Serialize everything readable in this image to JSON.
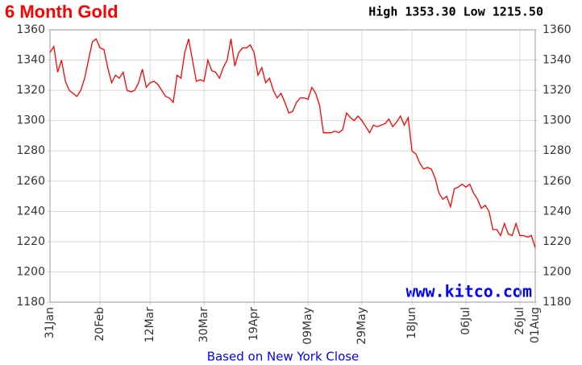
{
  "chart_data": {
    "type": "line",
    "title": "6 Month Gold",
    "subtitle": "High 1353.30 Low 1215.50",
    "watermark": "www.kitco.com",
    "x_label": "Based on New York Close",
    "categories": [
      "31Jan",
      null,
      null,
      null,
      null,
      null,
      null,
      null,
      null,
      null,
      null,
      null,
      null,
      "20Feb",
      null,
      null,
      null,
      null,
      null,
      null,
      null,
      null,
      null,
      null,
      null,
      null,
      "12Mar",
      null,
      null,
      null,
      null,
      null,
      null,
      null,
      null,
      null,
      null,
      null,
      null,
      null,
      "30Mar",
      null,
      null,
      null,
      null,
      null,
      null,
      null,
      null,
      null,
      null,
      null,
      null,
      "19Apr",
      null,
      null,
      null,
      null,
      null,
      null,
      null,
      null,
      null,
      null,
      null,
      null,
      null,
      "09May",
      null,
      null,
      null,
      null,
      null,
      null,
      null,
      null,
      null,
      null,
      null,
      null,
      null,
      "29May",
      null,
      null,
      null,
      null,
      null,
      null,
      null,
      null,
      null,
      null,
      null,
      null,
      "18Jun",
      null,
      null,
      null,
      null,
      null,
      null,
      null,
      null,
      null,
      null,
      null,
      null,
      null,
      "06Jul",
      null,
      null,
      null,
      null,
      null,
      null,
      null,
      null,
      null,
      null,
      null,
      null,
      null,
      "26Jul",
      null,
      null,
      null,
      "01Aug"
    ],
    "series": [
      {
        "name": "Gold",
        "color": "#ff0000",
        "values": [
          1345,
          1349,
          1332,
          1340,
          1326,
          1320,
          1318,
          1316,
          1320,
          1328,
          1340,
          1352,
          1354,
          1348,
          1347,
          1335,
          1325,
          1330,
          1328,
          1332,
          1320,
          1319,
          1320,
          1325,
          1334,
          1322,
          1325,
          1326,
          1324,
          1320,
          1316,
          1315,
          1312,
          1330,
          1328,
          1345,
          1354,
          1340,
          1326,
          1327,
          1326,
          1340,
          1333,
          1332,
          1328,
          1335,
          1340,
          1354,
          1336,
          1345,
          1348,
          1348,
          1350,
          1345,
          1330,
          1335,
          1325,
          1328,
          1320,
          1315,
          1318,
          1312,
          1305,
          1306,
          1312,
          1315,
          1315,
          1314,
          1322,
          1318,
          1310,
          1292,
          1292,
          1292,
          1293,
          1292,
          1294,
          1305,
          1302,
          1300,
          1303,
          1300,
          1296,
          1292,
          1297,
          1296,
          1297,
          1298,
          1301,
          1296,
          1299,
          1303,
          1297,
          1302,
          1280,
          1278,
          1272,
          1268,
          1269,
          1268,
          1262,
          1252,
          1248,
          1250,
          1243,
          1255,
          1256,
          1258,
          1256,
          1258,
          1252,
          1248,
          1242,
          1244,
          1240,
          1228,
          1228,
          1224,
          1232,
          1225,
          1224,
          1232,
          1224,
          1224,
          1223,
          1224,
          1216
        ]
      }
    ],
    "ylim": [
      1180,
      1360
    ],
    "yticks": [
      1180,
      1200,
      1220,
      1240,
      1260,
      1280,
      1300,
      1320,
      1340,
      1360
    ],
    "grid": true
  }
}
